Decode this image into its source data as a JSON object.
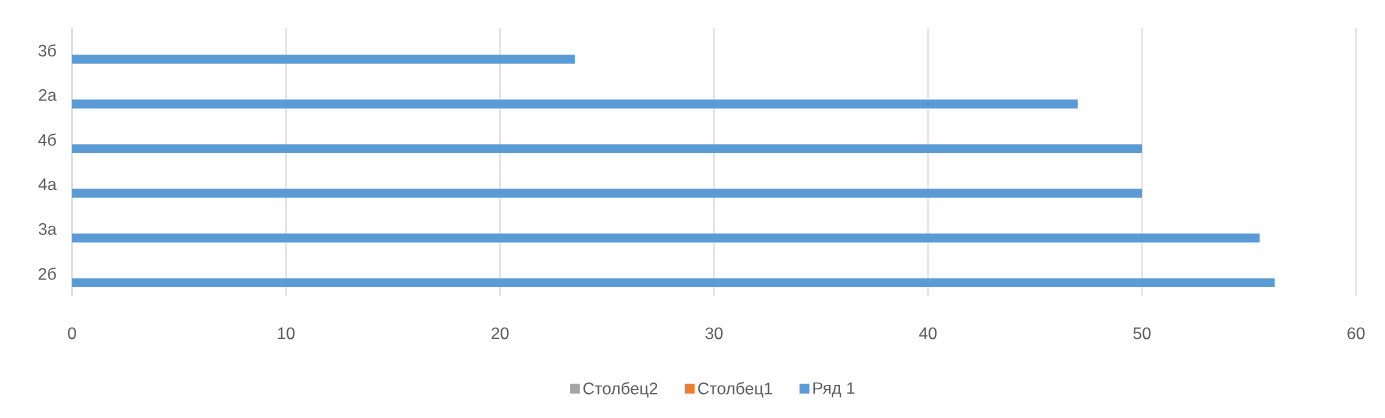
{
  "chart_data": {
    "type": "bar",
    "orientation": "horizontal",
    "categories": [
      "3б",
      "2а",
      "4б",
      "4а",
      "3а",
      "2б"
    ],
    "series": [
      {
        "name": "Ряд 1",
        "color": "#5b9bd5",
        "values": [
          23.5,
          47,
          50,
          50,
          55.5,
          56.2
        ]
      },
      {
        "name": "Столбец1",
        "color": "#ed7d31",
        "values": [
          null,
          null,
          null,
          null,
          null,
          null
        ]
      },
      {
        "name": "Столбец2",
        "color": "#a5a5a5",
        "values": [
          null,
          null,
          null,
          null,
          null,
          null
        ]
      }
    ],
    "xlim": [
      0,
      60
    ],
    "xticks": [
      0,
      10,
      20,
      30,
      40,
      50,
      60
    ],
    "grid": "x",
    "legend": "bottom"
  }
}
